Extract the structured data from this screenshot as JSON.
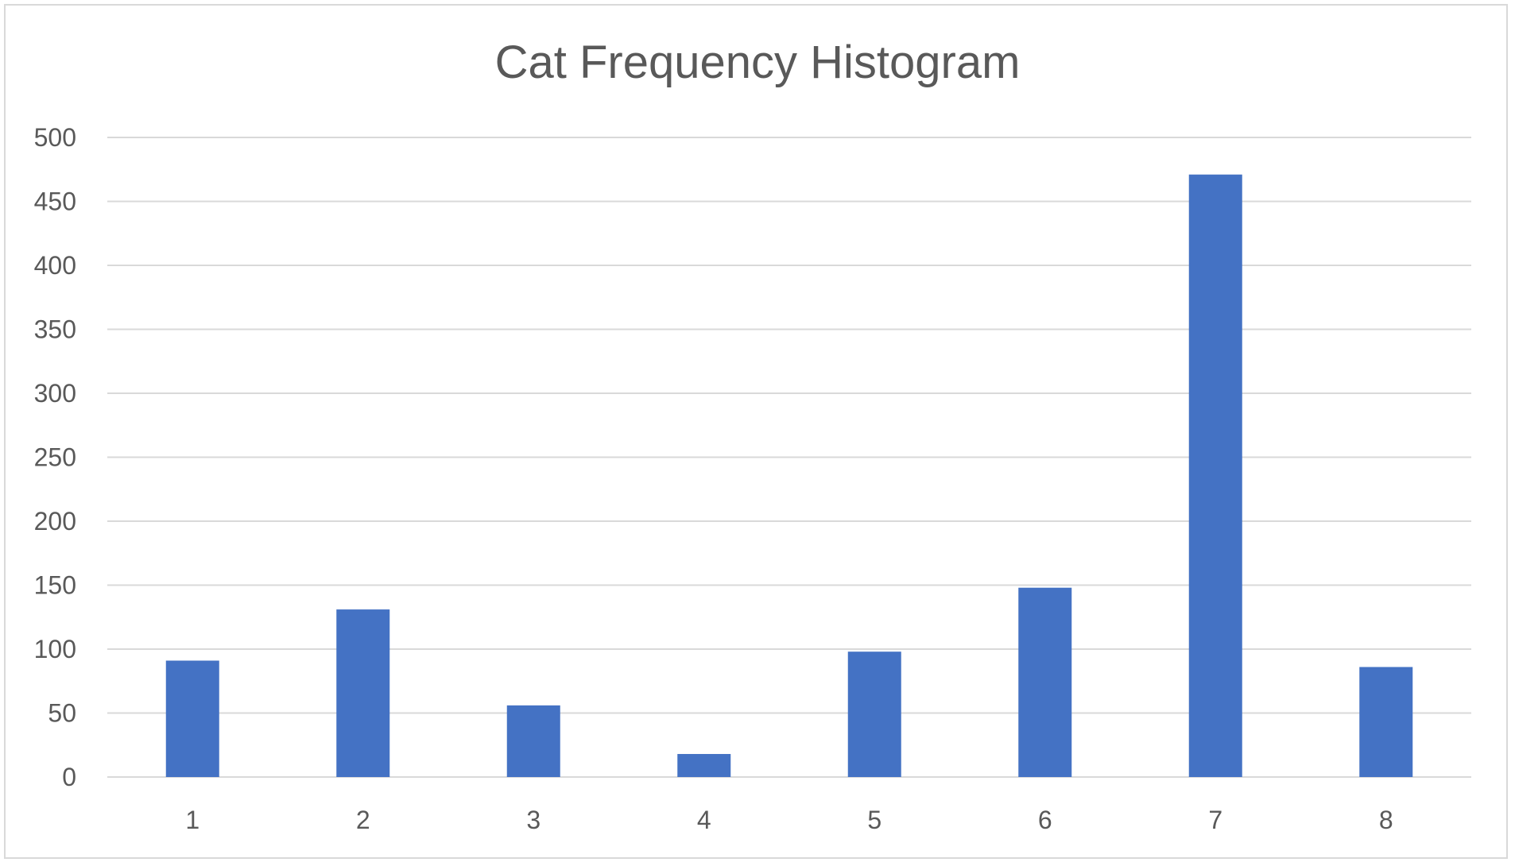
{
  "chart_data": {
    "type": "bar",
    "title": "Cat Frequency Histogram",
    "xlabel": "",
    "ylabel": "",
    "categories": [
      "1",
      "2",
      "3",
      "4",
      "5",
      "6",
      "7",
      "8"
    ],
    "values": [
      91,
      131,
      56,
      18,
      98,
      148,
      471,
      86
    ],
    "ylim": [
      0,
      500
    ],
    "yticks": [
      "0",
      "50",
      "100",
      "150",
      "200",
      "250",
      "300",
      "350",
      "400",
      "450",
      "500"
    ],
    "grid": true,
    "legend": "none",
    "bar_color": "#4472c4",
    "gridline_color": "#d9d9d9",
    "text_color": "#595959"
  }
}
